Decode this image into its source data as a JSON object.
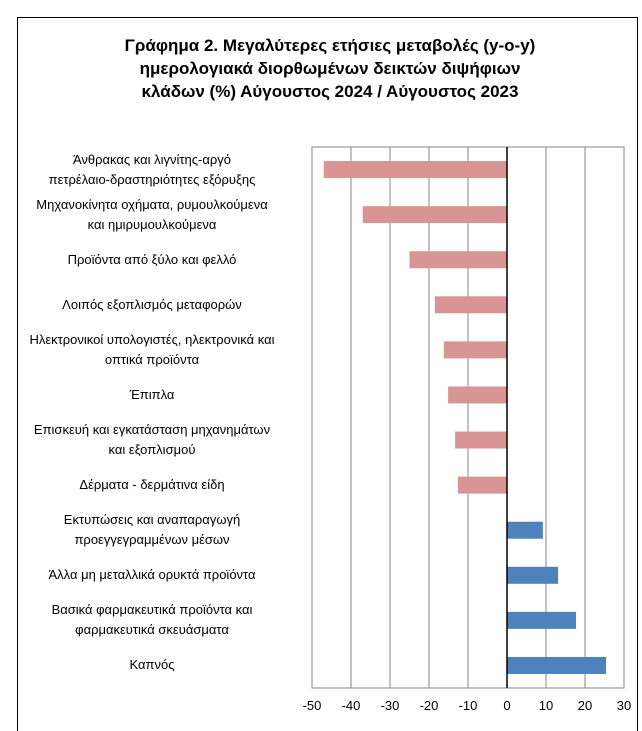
{
  "chart_data": {
    "type": "barh",
    "title": "Γράφημα 2. Μεγαλύτερες ετήσιες μεταβολές (y-o-y)\nημερολογιακά διορθωμένων δεικτών διψήφιων\nκλάδων (%) Αύγουστος  2024 / Αύγουστος  2023",
    "categories": [
      "Άνθρακας και λιγνίτης-αργό\nπετρέλαιο-δραστηριότητες εξόρυξης",
      "Μηχανοκίνητα οχήματα, ρυμουλκούμενα\nκαι ημιρυμουλκούμενα",
      "Προϊόντα από ξύλο και φελλό",
      "Λοιπός εξοπλισμός μεταφορών",
      "Ηλεκτρονικοί υπολογιστές, ηλεκτρονικά και\nοπτικά προϊόντα",
      "Έπιπλα",
      "Επισκευή και εγκατάσταση μηχανημάτων\nκαι εξοπλισμού",
      "Δέρματα - δερμάτινα είδη",
      "Εκτυπώσεις και αναπαραγωγή\nπροεγγεγραμμένων μέσων",
      "Άλλα μη μεταλλικά ορυκτά προϊόντα",
      "Βασικά φαρμακευτικά προϊόντα και\nφαρμακευτικά σκευάσματα",
      "Καπνός"
    ],
    "values": [
      -47,
      -37,
      -25,
      -18.5,
      -16.2,
      -15.1,
      -13.3,
      -12.6,
      9.2,
      13.1,
      17.7,
      25.4
    ],
    "colors": [
      "#d99594",
      "#d99594",
      "#d99594",
      "#d99594",
      "#d99594",
      "#d99594",
      "#d99594",
      "#d99594",
      "#4f81bd",
      "#4f81bd",
      "#4f81bd",
      "#4f81bd"
    ],
    "xlim": [
      -50,
      30
    ],
    "xticks": [
      -50,
      -40,
      -30,
      -20,
      -10,
      0,
      10,
      20,
      30
    ],
    "grid": true
  }
}
